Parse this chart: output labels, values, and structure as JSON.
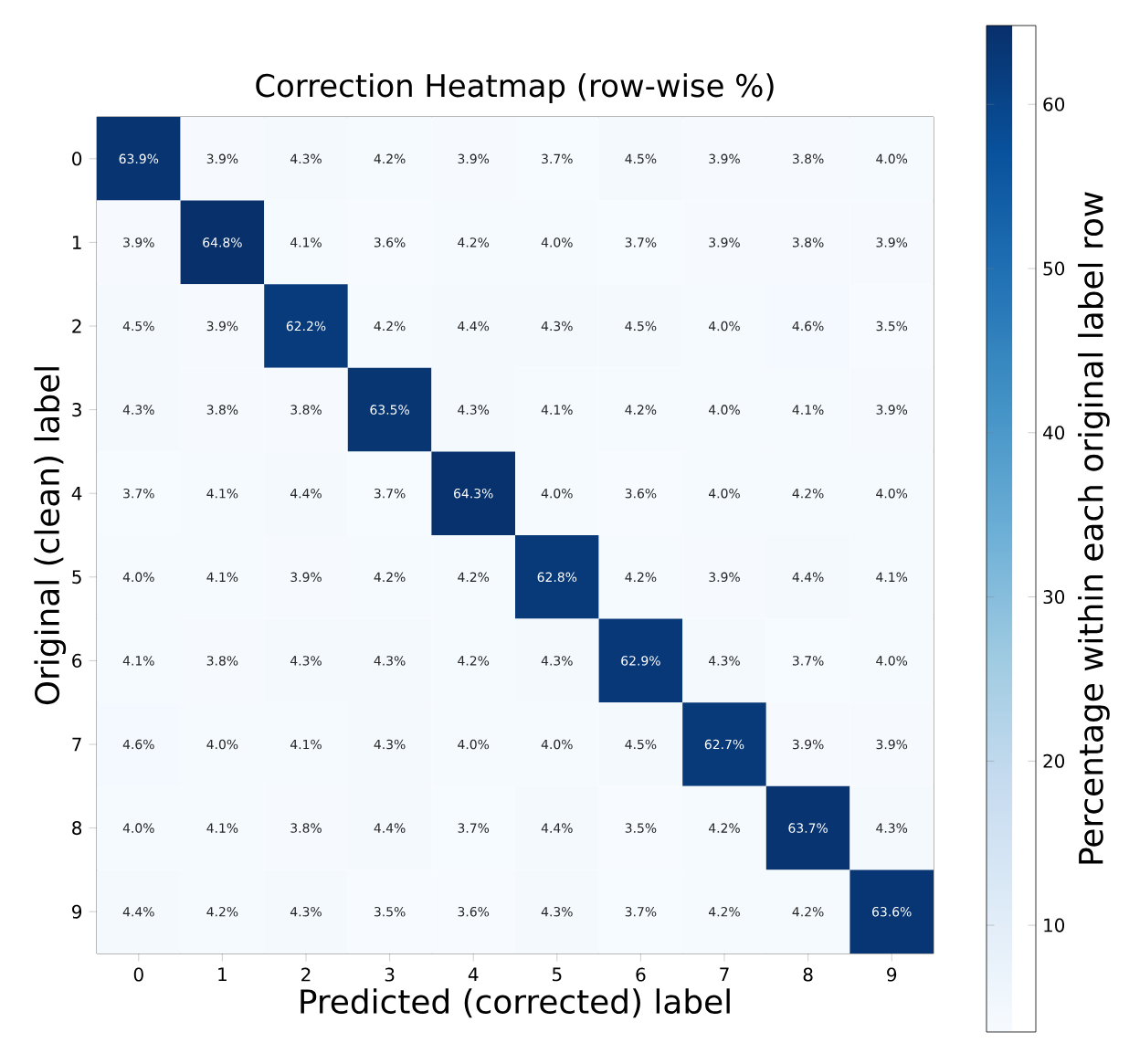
{
  "chart_data": {
    "type": "heatmap",
    "title": "Correction Heatmap (row-wise %)",
    "xlabel": "Predicted (corrected) label",
    "ylabel": "Original (clean) label",
    "clabel": "Percentage within each original label row",
    "categories": [
      "0",
      "1",
      "2",
      "3",
      "4",
      "5",
      "6",
      "7",
      "8",
      "9"
    ],
    "y_categories": [
      "0",
      "1",
      "2",
      "3",
      "4",
      "5",
      "6",
      "7",
      "8",
      "9"
    ],
    "cells": [
      [
        63.9,
        3.9,
        4.3,
        4.2,
        3.9,
        3.7,
        4.5,
        3.9,
        3.8,
        4.0
      ],
      [
        3.9,
        64.8,
        4.1,
        3.6,
        4.2,
        4.0,
        3.7,
        3.9,
        3.8,
        3.9
      ],
      [
        4.5,
        3.9,
        62.2,
        4.2,
        4.4,
        4.3,
        4.5,
        4.0,
        4.6,
        3.5
      ],
      [
        4.3,
        3.8,
        3.8,
        63.5,
        4.3,
        4.1,
        4.2,
        4.0,
        4.1,
        3.9
      ],
      [
        3.7,
        4.1,
        4.4,
        3.7,
        64.3,
        4.0,
        3.6,
        4.0,
        4.2,
        4.0
      ],
      [
        4.0,
        4.1,
        3.9,
        4.2,
        4.2,
        62.8,
        4.2,
        3.9,
        4.4,
        4.1
      ],
      [
        4.1,
        3.8,
        4.3,
        4.3,
        4.2,
        4.3,
        62.9,
        4.3,
        3.7,
        4.0
      ],
      [
        4.6,
        4.0,
        4.1,
        4.3,
        4.0,
        4.0,
        4.5,
        62.7,
        3.9,
        3.9
      ],
      [
        4.0,
        4.1,
        3.8,
        4.4,
        3.7,
        4.4,
        3.5,
        4.2,
        63.7,
        4.3
      ],
      [
        4.4,
        4.2,
        4.3,
        3.5,
        3.6,
        4.3,
        3.7,
        4.2,
        4.2,
        63.6
      ]
    ],
    "cell_labels": [
      [
        "63.9%",
        "3.9%",
        "4.3%",
        "4.2%",
        "3.9%",
        "3.7%",
        "4.5%",
        "3.9%",
        "3.8%",
        "4.0%"
      ],
      [
        "3.9%",
        "64.8%",
        "4.1%",
        "3.6%",
        "4.2%",
        "4.0%",
        "3.7%",
        "3.9%",
        "3.8%",
        "3.9%"
      ],
      [
        "4.5%",
        "3.9%",
        "62.2%",
        "4.2%",
        "4.4%",
        "4.3%",
        "4.5%",
        "4.0%",
        "4.6%",
        "3.5%"
      ],
      [
        "4.3%",
        "3.8%",
        "3.8%",
        "63.5%",
        "4.3%",
        "4.1%",
        "4.2%",
        "4.0%",
        "4.1%",
        "3.9%"
      ],
      [
        "3.7%",
        "4.1%",
        "4.4%",
        "3.7%",
        "64.3%",
        "4.0%",
        "3.6%",
        "4.0%",
        "4.2%",
        "4.0%"
      ],
      [
        "4.0%",
        "4.1%",
        "3.9%",
        "4.2%",
        "4.2%",
        "62.8%",
        "4.2%",
        "3.9%",
        "4.4%",
        "4.1%"
      ],
      [
        "4.1%",
        "3.8%",
        "4.3%",
        "4.3%",
        "4.2%",
        "4.3%",
        "62.9%",
        "4.3%",
        "3.7%",
        "4.0%"
      ],
      [
        "4.6%",
        "4.0%",
        "4.1%",
        "4.3%",
        "4.0%",
        "4.0%",
        "4.5%",
        "62.7%",
        "3.9%",
        "3.9%"
      ],
      [
        "4.0%",
        "4.1%",
        "3.8%",
        "4.4%",
        "3.7%",
        "4.4%",
        "3.5%",
        "4.2%",
        "63.7%",
        "4.3%"
      ],
      [
        "4.4%",
        "4.2%",
        "4.3%",
        "3.5%",
        "3.6%",
        "4.3%",
        "3.7%",
        "4.2%",
        "4.2%",
        "63.6%"
      ]
    ],
    "clim": [
      3.5,
      64.8
    ],
    "cticks": [
      10,
      20,
      30,
      40,
      50,
      60
    ]
  }
}
